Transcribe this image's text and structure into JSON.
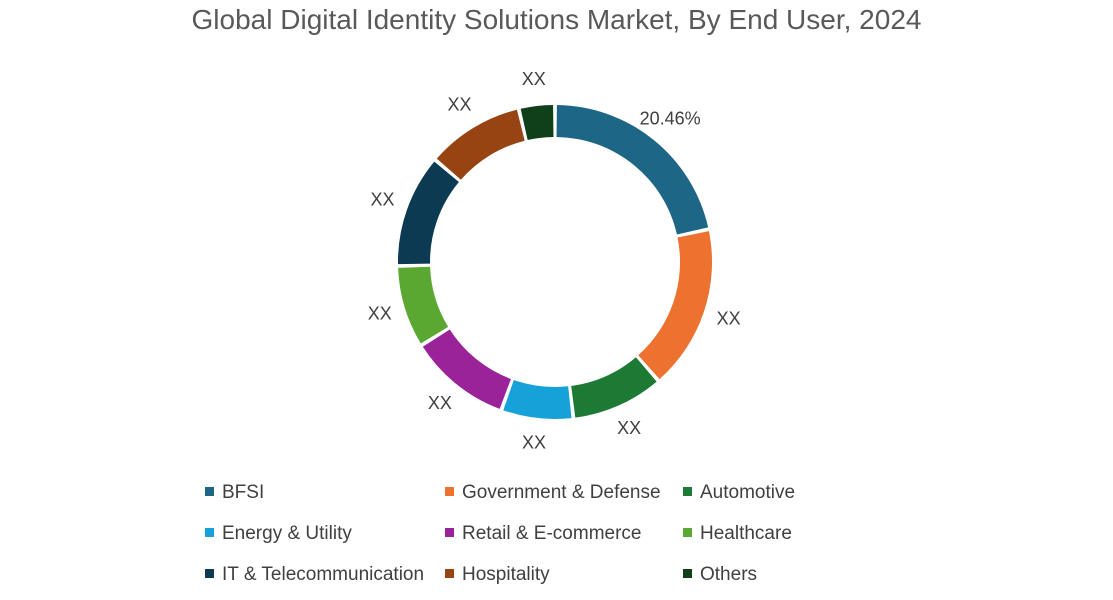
{
  "chart_data": {
    "type": "pie",
    "title": "Global Digital Identity Solutions Market, By End User, 2024",
    "series": [
      {
        "name": "BFSI",
        "value": 20.46,
        "label": "20.46%",
        "color": "#1e6685"
      },
      {
        "name": "Government & Defense",
        "value": 16,
        "label": "XX",
        "color": "#ed7230"
      },
      {
        "name": "Automotive",
        "value": 9,
        "label": "XX",
        "color": "#1d7a34"
      },
      {
        "name": "Energy & Utility",
        "value": 7,
        "label": "XX",
        "color": "#16a2d9"
      },
      {
        "name": "Retail & E-commerce",
        "value": 10,
        "label": "XX",
        "color": "#9b2399"
      },
      {
        "name": "Healthcare",
        "value": 8,
        "label": "XX",
        "color": "#5aa832"
      },
      {
        "name": "IT & Telecommunication",
        "value": 11,
        "label": "XX",
        "color": "#0c3a52"
      },
      {
        "name": "Hospitality",
        "value": 9.5,
        "label": "XX",
        "color": "#974412"
      },
      {
        "name": "Others",
        "value": 3.5,
        "label": "XX",
        "color": "#0f4019"
      }
    ],
    "legend_position": "bottom"
  }
}
